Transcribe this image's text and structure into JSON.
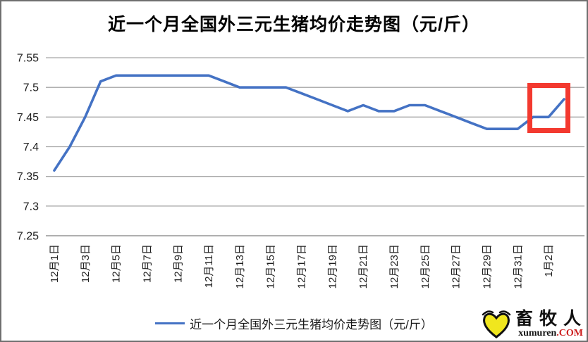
{
  "title": "近一个月全国外三元生猪均价走势图（元/斤）",
  "legend": {
    "label": "近一个月全国外三元生猪均价走势图（元/斤）"
  },
  "chart_data": {
    "type": "line",
    "title": "近一个月全国外三元生猪均价走势图（元/斤）",
    "xlabel": "",
    "ylabel": "",
    "ylim": [
      7.25,
      7.55
    ],
    "y_ticks": [
      7.25,
      7.3,
      7.35,
      7.4,
      7.45,
      7.5,
      7.55
    ],
    "y_tick_labels": [
      "7.25",
      "7.3",
      "7.35",
      "7.4",
      "7.45",
      "7.5",
      "7.55"
    ],
    "x_tick_labels": [
      "12月1日",
      "12月3日",
      "12月5日",
      "12月7日",
      "12月9日",
      "12月11日",
      "12月13日",
      "12月15日",
      "12月17日",
      "12月19日",
      "12月21日",
      "12月23日",
      "12月25日",
      "12月27日",
      "12月29日",
      "12月31日",
      "1月2日"
    ],
    "grid": true,
    "legend_position": "bottom",
    "series": [
      {
        "name": "近一个月全国外三元生猪均价走势图（元/斤）",
        "color": "#4472C4",
        "x": [
          "12月1日",
          "12月2日",
          "12月3日",
          "12月4日",
          "12月5日",
          "12月6日",
          "12月7日",
          "12月8日",
          "12月9日",
          "12月10日",
          "12月11日",
          "12月12日",
          "12月13日",
          "12月14日",
          "12月15日",
          "12月16日",
          "12月17日",
          "12月18日",
          "12月19日",
          "12月20日",
          "12月21日",
          "12月22日",
          "12月23日",
          "12月24日",
          "12月25日",
          "12月26日",
          "12月27日",
          "12月28日",
          "12月29日",
          "12月30日",
          "12月31日",
          "1月1日",
          "1月2日",
          "1月3日"
        ],
        "values": [
          7.36,
          7.4,
          7.45,
          7.51,
          7.52,
          7.52,
          7.52,
          7.52,
          7.52,
          7.52,
          7.52,
          7.51,
          7.5,
          7.5,
          7.5,
          7.5,
          7.49,
          7.48,
          7.47,
          7.46,
          7.47,
          7.46,
          7.46,
          7.47,
          7.47,
          7.46,
          7.45,
          7.44,
          7.43,
          7.43,
          7.43,
          7.45,
          7.45,
          7.48
        ]
      }
    ],
    "annotation": {
      "type": "highlight-box",
      "note": "last three days circled in red",
      "color": "#f3392f"
    }
  },
  "colors": {
    "line": "#4472C4",
    "gridline": "#a6a6a6",
    "axis_line": "#7f7f7f",
    "tick_text": "#1f1f1f",
    "highlight": "#f3392f"
  },
  "logo": {
    "name": "畜牧人",
    "domain": "xumuren",
    "tld": ".COM",
    "heart_icon_color": "#f0e61e"
  }
}
